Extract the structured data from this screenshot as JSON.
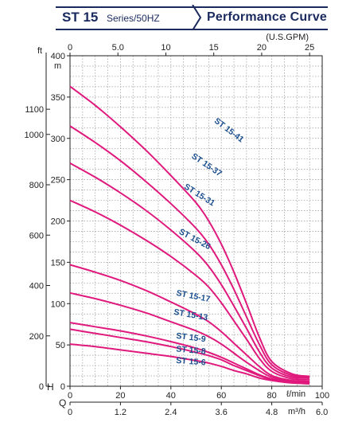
{
  "header": {
    "model": "ST 15",
    "series": "Series/50HZ",
    "title": "Performance Curve"
  },
  "chart_data": {
    "type": "line",
    "x_primary": {
      "unit": "ℓ/min",
      "label": "Q",
      "range": [
        0,
        100
      ],
      "ticks": [
        0,
        20,
        40,
        60,
        80,
        100
      ],
      "tick_labels": [
        "0",
        "20",
        "40",
        "60",
        "80",
        "100"
      ]
    },
    "x_secondary": {
      "unit": "m³/h",
      "ticks": [
        "0",
        "1.2",
        "2.4",
        "3.6",
        "4.8",
        "6.0"
      ]
    },
    "x_top": {
      "unit": "(U.S.GPM)",
      "ticks": [
        "0",
        "5.0",
        "10",
        "15",
        "20",
        "25"
      ]
    },
    "y_primary": {
      "unit": "m",
      "label": "H",
      "range": [
        0,
        400
      ],
      "ticks": [
        0,
        50,
        100,
        150,
        200,
        250,
        300,
        350,
        400
      ],
      "tick_labels": [
        "0",
        "50",
        "100",
        "150",
        "200",
        "250",
        "300",
        "350",
        "400"
      ]
    },
    "y_secondary": {
      "unit": "ft",
      "ticks": [
        0,
        200,
        400,
        600,
        800,
        1000,
        1100
      ],
      "tick_labels": [
        "0",
        "200",
        "400",
        "600",
        "800",
        "1000",
        "1100"
      ]
    },
    "grid": true,
    "line_color": "#e0197d",
    "label_color": "#1b4f8f",
    "series": [
      {
        "name": "ST 15-41",
        "points": [
          [
            0,
            363
          ],
          [
            10,
            340
          ],
          [
            20,
            314
          ],
          [
            30,
            286
          ],
          [
            40,
            255
          ],
          [
            50,
            222
          ],
          [
            55,
            200
          ],
          [
            60,
            172
          ],
          [
            65,
            138
          ],
          [
            70,
            100
          ],
          [
            75,
            60
          ],
          [
            80,
            30
          ],
          [
            88,
            15
          ],
          [
            95,
            12
          ]
        ]
      },
      {
        "name": "ST 15-37",
        "points": [
          [
            0,
            315
          ],
          [
            10,
            295
          ],
          [
            20,
            273
          ],
          [
            30,
            248
          ],
          [
            40,
            221
          ],
          [
            50,
            191
          ],
          [
            55,
            172
          ],
          [
            60,
            147
          ],
          [
            65,
            117
          ],
          [
            70,
            84
          ],
          [
            75,
            51
          ],
          [
            80,
            26
          ],
          [
            88,
            13
          ],
          [
            95,
            11
          ]
        ]
      },
      {
        "name": "ST 15-31",
        "points": [
          [
            0,
            270
          ],
          [
            10,
            253
          ],
          [
            20,
            234
          ],
          [
            30,
            213
          ],
          [
            40,
            189
          ],
          [
            50,
            162
          ],
          [
            55,
            145
          ],
          [
            60,
            123
          ],
          [
            65,
            97
          ],
          [
            70,
            70
          ],
          [
            75,
            42
          ],
          [
            80,
            22
          ],
          [
            88,
            11
          ],
          [
            95,
            10
          ]
        ]
      },
      {
        "name": "ST 15-26",
        "points": [
          [
            0,
            225
          ],
          [
            10,
            211
          ],
          [
            20,
            195
          ],
          [
            30,
            177
          ],
          [
            40,
            157
          ],
          [
            50,
            134
          ],
          [
            55,
            120
          ],
          [
            60,
            101
          ],
          [
            65,
            79
          ],
          [
            70,
            57
          ],
          [
            75,
            34
          ],
          [
            80,
            18
          ],
          [
            88,
            9
          ],
          [
            95,
            8
          ]
        ]
      },
      {
        "name": "ST 15-17",
        "points": [
          [
            0,
            147
          ],
          [
            10,
            138
          ],
          [
            20,
            128
          ],
          [
            30,
            116
          ],
          [
            40,
            102
          ],
          [
            50,
            87
          ],
          [
            55,
            78
          ],
          [
            60,
            66
          ],
          [
            65,
            52
          ],
          [
            70,
            38
          ],
          [
            75,
            24
          ],
          [
            80,
            13
          ],
          [
            88,
            7
          ],
          [
            95,
            6
          ]
        ]
      },
      {
        "name": "ST 15-13",
        "points": [
          [
            0,
            113
          ],
          [
            10,
            106
          ],
          [
            20,
            98
          ],
          [
            30,
            89
          ],
          [
            40,
            78
          ],
          [
            50,
            67
          ],
          [
            55,
            60
          ],
          [
            60,
            51
          ],
          [
            65,
            40
          ],
          [
            70,
            29
          ],
          [
            75,
            19
          ],
          [
            80,
            11
          ],
          [
            88,
            6
          ],
          [
            95,
            5
          ]
        ]
      },
      {
        "name": "ST 15-9",
        "points": [
          [
            0,
            77
          ],
          [
            10,
            72
          ],
          [
            20,
            67
          ],
          [
            30,
            61
          ],
          [
            40,
            54
          ],
          [
            50,
            46
          ],
          [
            55,
            41
          ],
          [
            60,
            35
          ],
          [
            65,
            28
          ],
          [
            70,
            21
          ],
          [
            75,
            14
          ],
          [
            80,
            9
          ],
          [
            88,
            5
          ],
          [
            95,
            4
          ]
        ]
      },
      {
        "name": "ST 15-8",
        "points": [
          [
            0,
            69
          ],
          [
            10,
            64
          ],
          [
            20,
            59
          ],
          [
            30,
            54
          ],
          [
            40,
            48
          ],
          [
            50,
            41
          ],
          [
            55,
            37
          ],
          [
            60,
            32
          ],
          [
            65,
            25
          ],
          [
            70,
            19
          ],
          [
            75,
            13
          ],
          [
            80,
            8
          ],
          [
            88,
            5
          ],
          [
            95,
            4
          ]
        ]
      },
      {
        "name": "ST 15-6",
        "points": [
          [
            0,
            51
          ],
          [
            10,
            48
          ],
          [
            20,
            44
          ],
          [
            30,
            40
          ],
          [
            40,
            36
          ],
          [
            50,
            31
          ],
          [
            55,
            28
          ],
          [
            60,
            24
          ],
          [
            65,
            19
          ],
          [
            70,
            15
          ],
          [
            75,
            10
          ],
          [
            80,
            7
          ],
          [
            88,
            4
          ],
          [
            95,
            3
          ]
        ]
      }
    ]
  }
}
